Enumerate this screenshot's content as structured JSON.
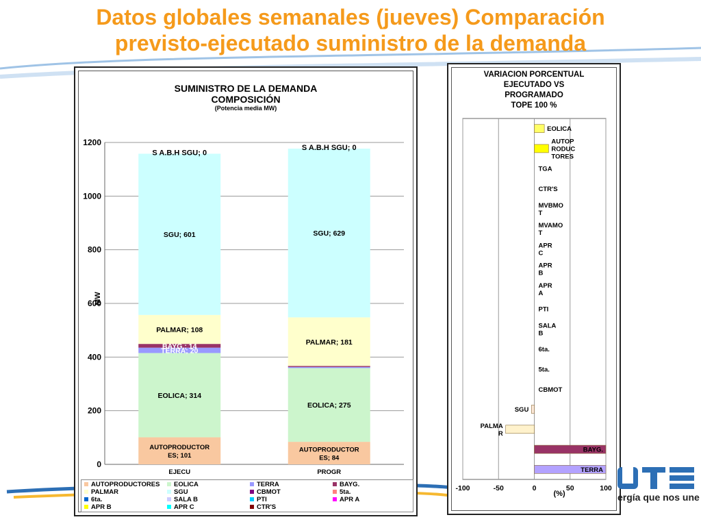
{
  "slide": {
    "title_line1": "Datos globales semanales  (jueves) Comparación",
    "title_line2": "previsto-ejecutado suministro de la demanda",
    "colors": {
      "title": "#f59a1b",
      "swoosh": "#2d6fb5"
    }
  },
  "logo": {
    "brand": "UTE",
    "tagline": "ergía que nos une"
  },
  "chart_data": [
    {
      "type": "bar",
      "stacked": true,
      "title": "SUMINISTRO DE LA DEMANDA",
      "subtitle": "COMPOSICIÓN",
      "subtitle2": "(Potencia media MW)",
      "ylabel": "MW",
      "ylim": [
        0,
        1200
      ],
      "yticks": [
        "0",
        "200",
        "400",
        "600",
        "800",
        "1000",
        "1200"
      ],
      "categories": [
        "EJECU",
        "PROGR"
      ],
      "series": [
        {
          "name": "AUTOPRODUCTORES",
          "color": "#f9c8a0",
          "values": [
            101,
            84
          ],
          "labels": [
            "AUTOPRODUCTOR ES; 101",
            "AUTOPRODUCTOR ES; 84"
          ]
        },
        {
          "name": "EOLICA",
          "color": "#ccf5cc",
          "values": [
            314,
            275
          ],
          "labels": [
            "EOLICA; 314",
            "EOLICA; 275"
          ]
        },
        {
          "name": "TERRA",
          "color": "#9999ff",
          "values": [
            20,
            4
          ],
          "labels": [
            "TERRA; 20",
            ""
          ]
        },
        {
          "name": "BAYG.",
          "color": "#993366",
          "values": [
            14,
            4
          ],
          "labels": [
            "BAYG.; 14",
            ""
          ]
        },
        {
          "name": "PALMAR",
          "color": "#ffffcc",
          "values": [
            108,
            181
          ],
          "labels": [
            "PALMAR; 108",
            "PALMAR; 181"
          ]
        },
        {
          "name": "SGU",
          "color": "#ccffff",
          "values": [
            601,
            629
          ],
          "labels": [
            "SGU; 601",
            "SGU; 629"
          ]
        },
        {
          "name": "CBMOT",
          "color": "#800080",
          "values": [
            0,
            0
          ],
          "labels": [
            "",
            ""
          ]
        },
        {
          "name": "5ta.",
          "color": "#ff8080",
          "values": [
            0,
            0
          ],
          "labels": [
            "",
            ""
          ]
        },
        {
          "name": "6ta.",
          "color": "#0066cc",
          "values": [
            0,
            0
          ],
          "labels": [
            "",
            ""
          ]
        },
        {
          "name": "SALA B",
          "color": "#ccccff",
          "values": [
            0,
            0
          ],
          "labels": [
            "",
            ""
          ]
        },
        {
          "name": "PTI",
          "color": "#00ccff",
          "values": [
            0,
            0
          ],
          "labels": [
            "",
            ""
          ]
        },
        {
          "name": "APR A",
          "color": "#ff00ff",
          "values": [
            0,
            0
          ],
          "labels": [
            "",
            ""
          ]
        },
        {
          "name": "APR B",
          "color": "#ffff00",
          "values": [
            0,
            0
          ],
          "labels": [
            "",
            ""
          ]
        },
        {
          "name": "APR C",
          "color": "#00ffff",
          "values": [
            0,
            0
          ],
          "labels": [
            "",
            ""
          ]
        },
        {
          "name": "CTR'S",
          "color": "#800000",
          "values": [
            0,
            0
          ],
          "labels": [
            "",
            ""
          ]
        }
      ],
      "top_labels": [
        "S A.B.H SGU; 0",
        "S A.B.H SGU; 0"
      ],
      "grid": true,
      "legend_position": "bottom"
    },
    {
      "type": "bar",
      "orientation": "horizontal",
      "title_lines": [
        "VARIACION PORCENTUAL",
        "EJECUTADO VS",
        "PROGRAMADO",
        "TOPE 100 %"
      ],
      "xlabel": "(%)",
      "xlim": [
        -100,
        100
      ],
      "xticks": [
        "-100",
        "-50",
        "0",
        "50",
        "100"
      ],
      "categories": [
        "EOLICA",
        "AUTOP RODUC TORES",
        "TGA",
        "CTR'S",
        "MVBMO T",
        "MVAMO T",
        "APR C",
        "APR B",
        "APR A",
        "PTI",
        "SALA B",
        "6ta.",
        "5ta.",
        "CBMOT",
        "SGU",
        "PALMA R",
        "BAYG.",
        "TERRA"
      ],
      "values": [
        14,
        20,
        0,
        0,
        0,
        0,
        0,
        0,
        0,
        0,
        0,
        0,
        0,
        0,
        -4,
        -40,
        100,
        100
      ],
      "colors": [
        "#ffff66",
        "#ffff00",
        "#fff",
        "#fff",
        "#fff",
        "#fff",
        "#fff",
        "#fff",
        "#fff",
        "#fff",
        "#fff",
        "#fff",
        "#fff",
        "#fff",
        "#fde9d9",
        "#fff2cc",
        "#993366",
        "#b3a2ff"
      ],
      "grid": true
    }
  ]
}
